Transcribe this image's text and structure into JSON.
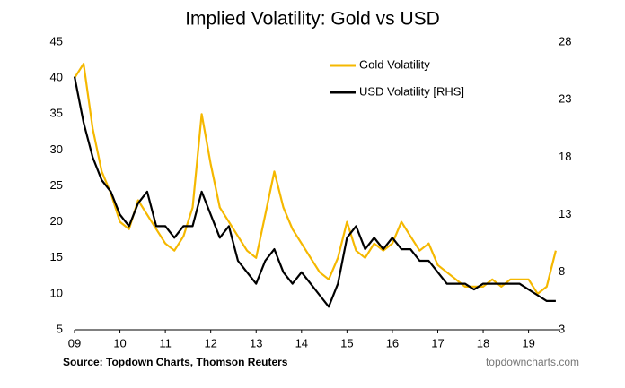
{
  "chart_data": {
    "type": "line",
    "title": "Implied Volatility: Gold vs USD",
    "source": "Source: Topdown Charts, Thomson Reuters",
    "watermark": "topdowncharts.com",
    "x": [
      2009.0,
      2009.2,
      2009.4,
      2009.6,
      2009.8,
      2010.0,
      2010.2,
      2010.4,
      2010.6,
      2010.8,
      2011.0,
      2011.2,
      2011.4,
      2011.6,
      2011.8,
      2012.0,
      2012.2,
      2012.4,
      2012.6,
      2012.8,
      2013.0,
      2013.2,
      2013.4,
      2013.6,
      2013.8,
      2014.0,
      2014.2,
      2014.4,
      2014.6,
      2014.8,
      2015.0,
      2015.2,
      2015.4,
      2015.6,
      2015.8,
      2016.0,
      2016.2,
      2016.4,
      2016.6,
      2016.8,
      2017.0,
      2017.2,
      2017.4,
      2017.6,
      2017.8,
      2018.0,
      2018.2,
      2018.4,
      2018.6,
      2018.8,
      2019.0,
      2019.2,
      2019.4,
      2019.6
    ],
    "series": [
      {
        "name": "Gold Volatility",
        "color": "#f5b800",
        "values": [
          40,
          42,
          33,
          27,
          24,
          20,
          19,
          23,
          21,
          19,
          17,
          16,
          18,
          22,
          35,
          28,
          22,
          20,
          18,
          16,
          15,
          21,
          27,
          22,
          19,
          17,
          15,
          13,
          12,
          15,
          20,
          16,
          15,
          17,
          16,
          17,
          20,
          18,
          16,
          17,
          14,
          13,
          12,
          11,
          11,
          11,
          12,
          11,
          12,
          12,
          12,
          10,
          11,
          16
        ]
      },
      {
        "name": "USD Volatility [RHS]",
        "color": "#000000",
        "axis": "y2",
        "values": [
          25,
          21,
          18,
          16,
          15,
          13,
          12,
          14,
          15,
          12,
          12,
          11,
          12,
          12,
          15,
          13,
          11,
          12,
          9,
          8,
          7,
          9,
          10,
          8,
          7,
          8,
          7,
          6,
          5,
          7,
          11,
          12,
          10,
          11,
          10,
          11,
          10,
          10,
          9,
          9,
          8,
          7,
          7,
          7,
          6.5,
          7,
          7,
          7,
          7,
          7,
          6.5,
          6,
          5.5,
          5.5
        ]
      }
    ],
    "xlim": [
      2009,
      2019.7
    ],
    "xticks": [
      {
        "value": 2009,
        "label": "09"
      },
      {
        "value": 2010,
        "label": "10"
      },
      {
        "value": 2011,
        "label": "11"
      },
      {
        "value": 2012,
        "label": "12"
      },
      {
        "value": 2013,
        "label": "13"
      },
      {
        "value": 2014,
        "label": "14"
      },
      {
        "value": 2015,
        "label": "15"
      },
      {
        "value": 2016,
        "label": "16"
      },
      {
        "value": 2017,
        "label": "17"
      },
      {
        "value": 2018,
        "label": "18"
      },
      {
        "value": 2019,
        "label": "19"
      }
    ],
    "ylim": [
      5,
      45
    ],
    "yticks": [
      5,
      10,
      15,
      20,
      25,
      30,
      35,
      40,
      45
    ],
    "y2lim": [
      3,
      28
    ],
    "y2ticks": [
      3,
      8,
      13,
      18,
      23,
      28
    ],
    "grid": false,
    "legend_position": "upper-right"
  }
}
